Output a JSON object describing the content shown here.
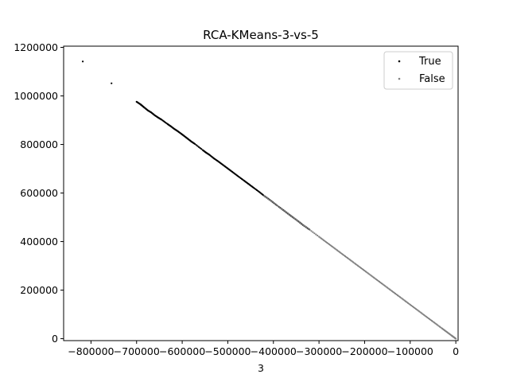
{
  "chart_data": {
    "type": "scatter",
    "title": "RCA-KMeans-3-vs-5",
    "xlabel": "3",
    "ylabel": "",
    "xlim": [
      -860000,
      5000
    ],
    "ylim": [
      -8000,
      1205000
    ],
    "xticks": [
      -800000,
      -700000,
      -600000,
      -500000,
      -400000,
      -300000,
      -200000,
      -100000,
      0
    ],
    "xtick_labels": [
      "−800000",
      "−700000",
      "−600000",
      "−500000",
      "−400000",
      "−300000",
      "−200000",
      "−100000",
      "0"
    ],
    "yticks": [
      0,
      200000,
      400000,
      600000,
      800000,
      1000000,
      1200000
    ],
    "ytick_labels": [
      "0",
      "200000",
      "400000",
      "600000",
      "800000",
      "1000000",
      "1200000"
    ],
    "grid": false,
    "legend_position": "top-right",
    "series": [
      {
        "name": "True",
        "color": "#000000",
        "x": [
          -818000,
          -755000,
          -700000,
          -692000,
          -688000,
          -683000,
          -675000,
          -668000,
          -660000,
          -652000,
          -645000,
          -632000,
          -625000,
          -618000,
          -610000,
          -602000,
          -595000,
          -588000,
          -580000,
          -572000,
          -555000,
          -548000,
          -540000,
          -530000,
          -520000,
          -510000,
          -500000,
          -490000,
          -478000,
          -465000,
          -455000,
          -445000,
          -432000,
          -420000,
          -408000,
          -395000,
          -380000,
          -368000,
          -358000,
          -345000,
          -335000,
          -322000
        ],
        "y": [
          1142000,
          1052000,
          976000,
          966000,
          960000,
          952000,
          940000,
          932000,
          920000,
          910000,
          902000,
          884000,
          875000,
          865000,
          855000,
          844000,
          834000,
          824000,
          812000,
          802000,
          777000,
          767000,
          757000,
          742000,
          729000,
          715000,
          701000,
          687000,
          670000,
          652000,
          638000,
          624000,
          606000,
          588000,
          572000,
          553000,
          532000,
          515000,
          501000,
          483000,
          468000,
          451000
        ]
      },
      {
        "name": "False",
        "color": "#808080",
        "x": [
          -420000,
          -400000,
          -380000,
          -360000,
          -340000,
          -320000,
          -300000,
          -285000,
          -270000,
          -255000,
          -240000,
          -225000,
          -210000,
          -195000,
          -180000,
          -165000,
          -150000,
          -135000,
          -120000,
          -105000,
          -90000,
          -75000,
          -60000,
          -45000,
          -30000,
          -20000,
          -10000,
          -5000,
          0
        ],
        "y": [
          588000,
          560000,
          532000,
          504000,
          476000,
          448000,
          420000,
          399000,
          378000,
          357000,
          336000,
          315000,
          294000,
          273000,
          252000,
          231000,
          210000,
          189000,
          168000,
          147000,
          126000,
          105000,
          84000,
          63000,
          42000,
          28000,
          14000,
          7000,
          0
        ]
      }
    ]
  }
}
